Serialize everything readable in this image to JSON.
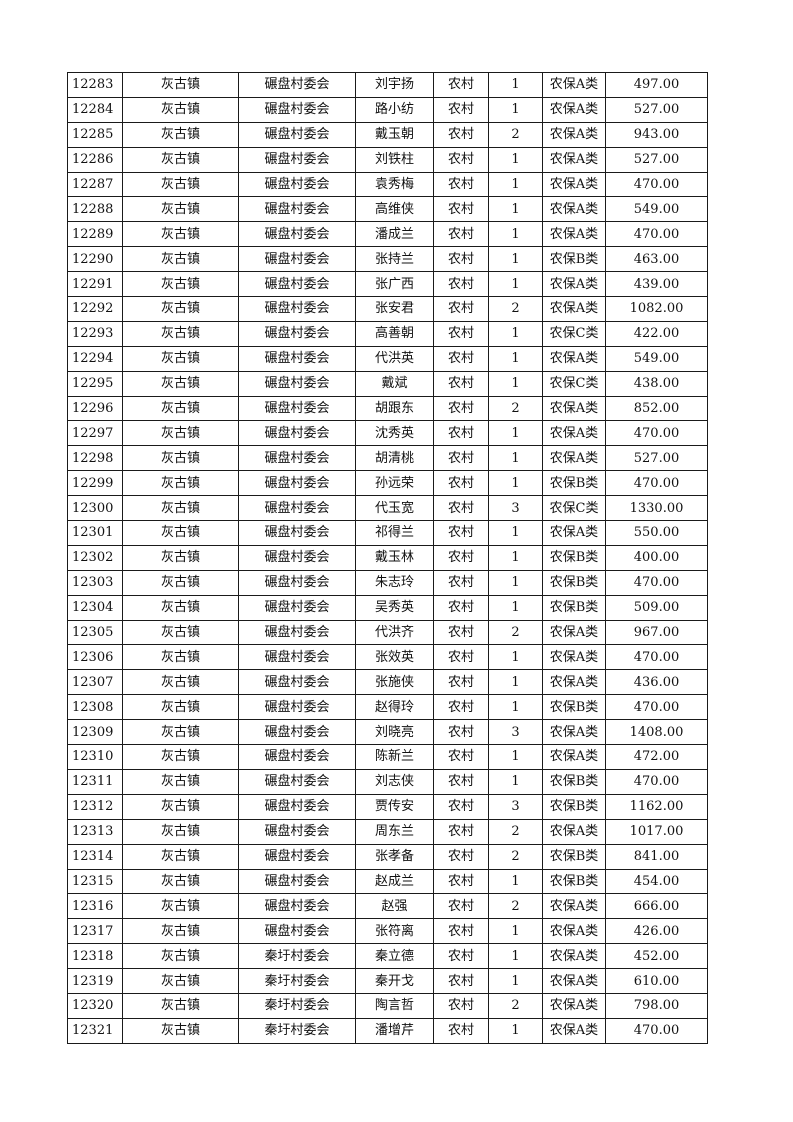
{
  "table": {
    "rows": [
      [
        "12283",
        "灰古镇",
        "碾盘村委会",
        "刘宇扬",
        "农村",
        "1",
        "农保A类",
        "497.00"
      ],
      [
        "12284",
        "灰古镇",
        "碾盘村委会",
        "路小纺",
        "农村",
        "1",
        "农保A类",
        "527.00"
      ],
      [
        "12285",
        "灰古镇",
        "碾盘村委会",
        "戴玉朝",
        "农村",
        "2",
        "农保A类",
        "943.00"
      ],
      [
        "12286",
        "灰古镇",
        "碾盘村委会",
        "刘铁柱",
        "农村",
        "1",
        "农保A类",
        "527.00"
      ],
      [
        "12287",
        "灰古镇",
        "碾盘村委会",
        "袁秀梅",
        "农村",
        "1",
        "农保A类",
        "470.00"
      ],
      [
        "12288",
        "灰古镇",
        "碾盘村委会",
        "高维侠",
        "农村",
        "1",
        "农保A类",
        "549.00"
      ],
      [
        "12289",
        "灰古镇",
        "碾盘村委会",
        "潘成兰",
        "农村",
        "1",
        "农保A类",
        "470.00"
      ],
      [
        "12290",
        "灰古镇",
        "碾盘村委会",
        "张持兰",
        "农村",
        "1",
        "农保B类",
        "463.00"
      ],
      [
        "12291",
        "灰古镇",
        "碾盘村委会",
        "张广西",
        "农村",
        "1",
        "农保A类",
        "439.00"
      ],
      [
        "12292",
        "灰古镇",
        "碾盘村委会",
        "张安君",
        "农村",
        "2",
        "农保A类",
        "1082.00"
      ],
      [
        "12293",
        "灰古镇",
        "碾盘村委会",
        "高善朝",
        "农村",
        "1",
        "农保C类",
        "422.00"
      ],
      [
        "12294",
        "灰古镇",
        "碾盘村委会",
        "代洪英",
        "农村",
        "1",
        "农保A类",
        "549.00"
      ],
      [
        "12295",
        "灰古镇",
        "碾盘村委会",
        "戴斌",
        "农村",
        "1",
        "农保C类",
        "438.00"
      ],
      [
        "12296",
        "灰古镇",
        "碾盘村委会",
        "胡跟东",
        "农村",
        "2",
        "农保A类",
        "852.00"
      ],
      [
        "12297",
        "灰古镇",
        "碾盘村委会",
        "沈秀英",
        "农村",
        "1",
        "农保A类",
        "470.00"
      ],
      [
        "12298",
        "灰古镇",
        "碾盘村委会",
        "胡清桃",
        "农村",
        "1",
        "农保A类",
        "527.00"
      ],
      [
        "12299",
        "灰古镇",
        "碾盘村委会",
        "孙远荣",
        "农村",
        "1",
        "农保B类",
        "470.00"
      ],
      [
        "12300",
        "灰古镇",
        "碾盘村委会",
        "代玉宽",
        "农村",
        "3",
        "农保C类",
        "1330.00"
      ],
      [
        "12301",
        "灰古镇",
        "碾盘村委会",
        "祁得兰",
        "农村",
        "1",
        "农保A类",
        "550.00"
      ],
      [
        "12302",
        "灰古镇",
        "碾盘村委会",
        "戴玉林",
        "农村",
        "1",
        "农保B类",
        "400.00"
      ],
      [
        "12303",
        "灰古镇",
        "碾盘村委会",
        "朱志玲",
        "农村",
        "1",
        "农保B类",
        "470.00"
      ],
      [
        "12304",
        "灰古镇",
        "碾盘村委会",
        "吴秀英",
        "农村",
        "1",
        "农保B类",
        "509.00"
      ],
      [
        "12305",
        "灰古镇",
        "碾盘村委会",
        "代洪齐",
        "农村",
        "2",
        "农保A类",
        "967.00"
      ],
      [
        "12306",
        "灰古镇",
        "碾盘村委会",
        "张效英",
        "农村",
        "1",
        "农保A类",
        "470.00"
      ],
      [
        "12307",
        "灰古镇",
        "碾盘村委会",
        "张施侠",
        "农村",
        "1",
        "农保A类",
        "436.00"
      ],
      [
        "12308",
        "灰古镇",
        "碾盘村委会",
        "赵得玲",
        "农村",
        "1",
        "农保B类",
        "470.00"
      ],
      [
        "12309",
        "灰古镇",
        "碾盘村委会",
        "刘晓亮",
        "农村",
        "3",
        "农保A类",
        "1408.00"
      ],
      [
        "12310",
        "灰古镇",
        "碾盘村委会",
        "陈新兰",
        "农村",
        "1",
        "农保A类",
        "472.00"
      ],
      [
        "12311",
        "灰古镇",
        "碾盘村委会",
        "刘志侠",
        "农村",
        "1",
        "农保B类",
        "470.00"
      ],
      [
        "12312",
        "灰古镇",
        "碾盘村委会",
        "贾传安",
        "农村",
        "3",
        "农保B类",
        "1162.00"
      ],
      [
        "12313",
        "灰古镇",
        "碾盘村委会",
        "周东兰",
        "农村",
        "2",
        "农保A类",
        "1017.00"
      ],
      [
        "12314",
        "灰古镇",
        "碾盘村委会",
        "张孝备",
        "农村",
        "2",
        "农保B类",
        "841.00"
      ],
      [
        "12315",
        "灰古镇",
        "碾盘村委会",
        "赵成兰",
        "农村",
        "1",
        "农保B类",
        "454.00"
      ],
      [
        "12316",
        "灰古镇",
        "碾盘村委会",
        "赵强",
        "农村",
        "2",
        "农保A类",
        "666.00"
      ],
      [
        "12317",
        "灰古镇",
        "碾盘村委会",
        "张符离",
        "农村",
        "1",
        "农保A类",
        "426.00"
      ],
      [
        "12318",
        "灰古镇",
        "秦圩村委会",
        "秦立德",
        "农村",
        "1",
        "农保A类",
        "452.00"
      ],
      [
        "12319",
        "灰古镇",
        "秦圩村委会",
        "秦开戈",
        "农村",
        "1",
        "农保A类",
        "610.00"
      ],
      [
        "12320",
        "灰古镇",
        "秦圩村委会",
        "陶言哲",
        "农村",
        "2",
        "农保A类",
        "798.00"
      ],
      [
        "12321",
        "灰古镇",
        "秦圩村委会",
        "潘增芹",
        "农村",
        "1",
        "农保A类",
        "470.00"
      ]
    ]
  }
}
